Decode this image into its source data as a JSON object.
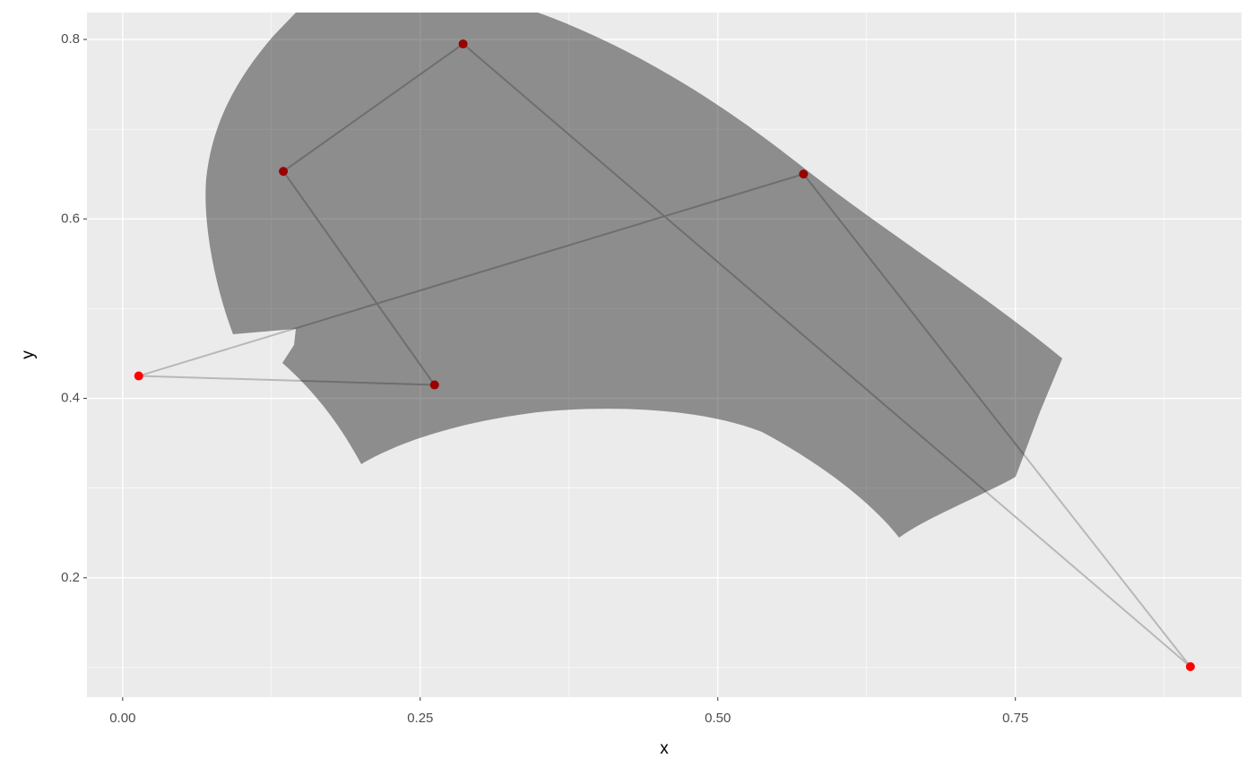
{
  "chart_data": {
    "type": "scatter",
    "xlabel": "x",
    "ylabel": "y",
    "x": [
      0.0135,
      0.262,
      0.135,
      0.286,
      0.897,
      0.572
    ],
    "y": [
      0.425,
      0.415,
      0.653,
      0.795,
      0.101,
      0.65
    ],
    "color": "#ff0000",
    "line_color": "#b8b8b8",
    "closed": true,
    "xlim": [
      -0.03,
      0.94
    ],
    "ylim": [
      0.067,
      0.83
    ],
    "xticks": [
      {
        "value": 0,
        "label": "0.00"
      },
      {
        "value": 0.25,
        "label": "0.25"
      },
      {
        "value": 0.5,
        "label": "0.50"
      },
      {
        "value": 0.75,
        "label": "0.75"
      }
    ],
    "yticks": [
      0.2,
      0.4,
      0.6,
      0.8
    ],
    "xminor": [
      0.125,
      0.375,
      0.625,
      0.875
    ],
    "yminor": [
      0.1,
      0.3,
      0.5,
      0.7
    ],
    "grid": true
  }
}
